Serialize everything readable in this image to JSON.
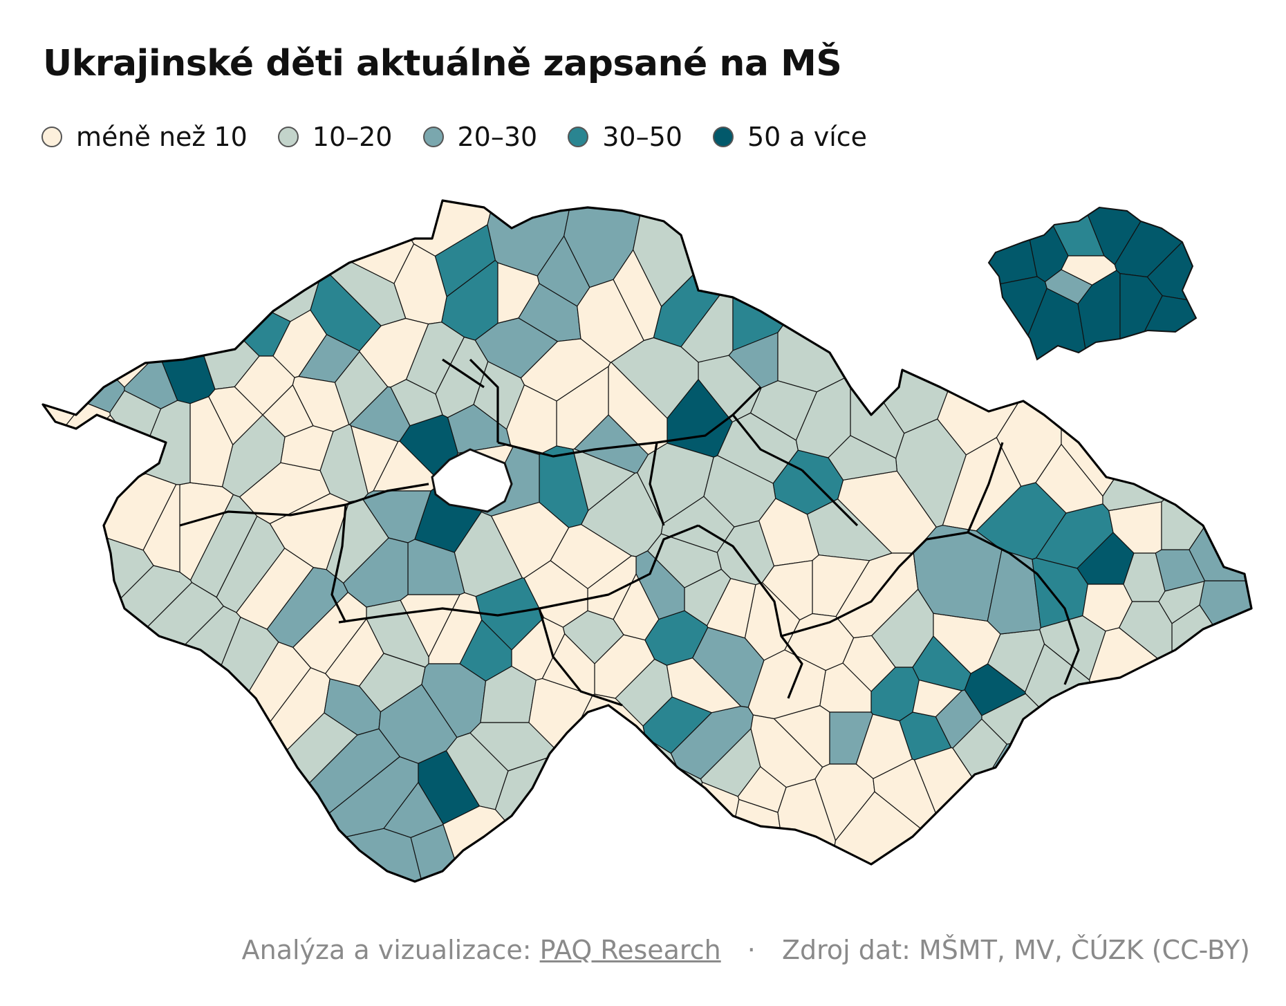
{
  "title": "Ukrajinské děti aktuálně zapsané na MŠ",
  "legend": [
    {
      "label": "méně než 10",
      "color": "#fdf0dc"
    },
    {
      "label": "10–20",
      "color": "#c3d4cb"
    },
    {
      "label": "20–30",
      "color": "#7aa7ae"
    },
    {
      "label": "30–50",
      "color": "#2a8591"
    },
    {
      "label": "50 a více",
      "color": "#02596b"
    }
  ],
  "footer": {
    "prefix": "Analýza a vizualizace:",
    "link": "PAQ Research",
    "separator": "·",
    "source": "Zdroj dat: MŠMT, MV, ČÚZK (CC-BY)"
  }
}
